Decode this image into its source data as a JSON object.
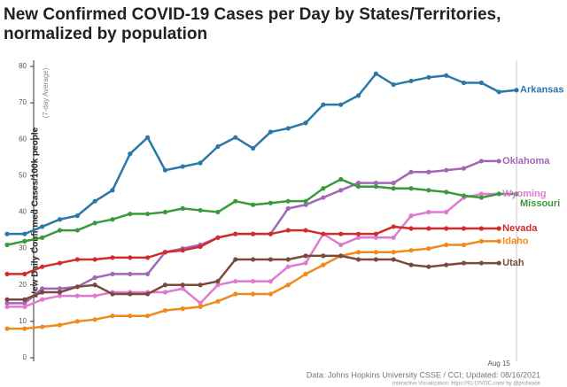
{
  "chart_data": {
    "type": "line",
    "title": [
      "New Confirmed COVID-19 Cases per Day by States/Territories,",
      "normalized by population"
    ],
    "y_label": "New Daily Confirmed Cases/100k people",
    "y_sublabel": "(7-day Average)",
    "source": "Data: Johns Hopkins University CSSE / CCI; Updated: 08/16/2021",
    "credit": "Interactive Visualization: https://91-DIVOC.com/ by @profwade",
    "categories": [
      null,
      null,
      null,
      null,
      null,
      null,
      null,
      null,
      null,
      null,
      null,
      null,
      null,
      null,
      null,
      null,
      null,
      null,
      null,
      null,
      null,
      null,
      null,
      null,
      null,
      null,
      null,
      null,
      "Aug 15",
      null
    ],
    "ylim": [
      0,
      82
    ],
    "yticks": [
      0,
      10,
      20,
      30,
      40,
      50,
      60,
      70,
      80
    ],
    "series": [
      {
        "name": "Arkansas",
        "color": "#2a77a8",
        "values": [
          34,
          34,
          36,
          38,
          39,
          43,
          46,
          56,
          60.5,
          51.5,
          52.5,
          53.5,
          58,
          60.5,
          57.5,
          62,
          63,
          64.5,
          69.5,
          69.5,
          72,
          78,
          75,
          76,
          77,
          77.5,
          75.5,
          75.5,
          73,
          73.5
        ]
      },
      {
        "name": "Oklahoma",
        "color": "#a066b8",
        "values": [
          15,
          15,
          19,
          19,
          19.5,
          22,
          23,
          23,
          23,
          29,
          30,
          31,
          33,
          34,
          34,
          34,
          41,
          42,
          44,
          46,
          48,
          48,
          48,
          51,
          51,
          51.5,
          52,
          54,
          54,
          null
        ]
      },
      {
        "name": "Wyoming",
        "color": "#e07ad0",
        "values": [
          14,
          14,
          16,
          17,
          17,
          17,
          18,
          18,
          18,
          18,
          19,
          15,
          20,
          21,
          21,
          21,
          25,
          26,
          34,
          31,
          33,
          33,
          33,
          39,
          40,
          40,
          44,
          45,
          45,
          null
        ]
      },
      {
        "name": "Missouri",
        "color": "#3a9a3a",
        "values": [
          31,
          32,
          33,
          35,
          35,
          37,
          38,
          39.5,
          39.5,
          40,
          41,
          40.5,
          40,
          43,
          42,
          42.5,
          43,
          43,
          46.5,
          49,
          47,
          47,
          46.5,
          46.5,
          46,
          45.5,
          44.5,
          44,
          45,
          45
        ]
      },
      {
        "name": "Nevada",
        "color": "#d12b2b",
        "values": [
          23,
          23,
          25,
          26,
          27,
          27,
          27.5,
          27.5,
          27.5,
          29,
          29.5,
          30.5,
          33,
          34,
          34,
          34,
          35,
          35,
          34,
          34,
          34,
          34,
          36,
          35.5,
          35.5,
          35.5,
          35.5,
          35.5,
          35.5,
          null
        ]
      },
      {
        "name": "Idaho",
        "color": "#f08a1c",
        "values": [
          8,
          8,
          8.5,
          9,
          10,
          10.5,
          11.5,
          11.5,
          11.5,
          13,
          13.5,
          14,
          15.5,
          17.5,
          17.5,
          17.5,
          20,
          23,
          25.5,
          28,
          29,
          29,
          29,
          29.5,
          30,
          31,
          31,
          32,
          32,
          null
        ]
      },
      {
        "name": "Utah",
        "color": "#7a4a3a",
        "values": [
          16,
          16,
          18,
          18,
          19.5,
          20,
          17.5,
          17.5,
          17.5,
          20,
          20,
          20,
          21,
          27,
          27,
          27,
          27,
          28,
          28,
          28,
          27,
          27,
          27,
          25.5,
          25,
          25.5,
          26,
          26,
          26,
          null
        ]
      }
    ]
  }
}
